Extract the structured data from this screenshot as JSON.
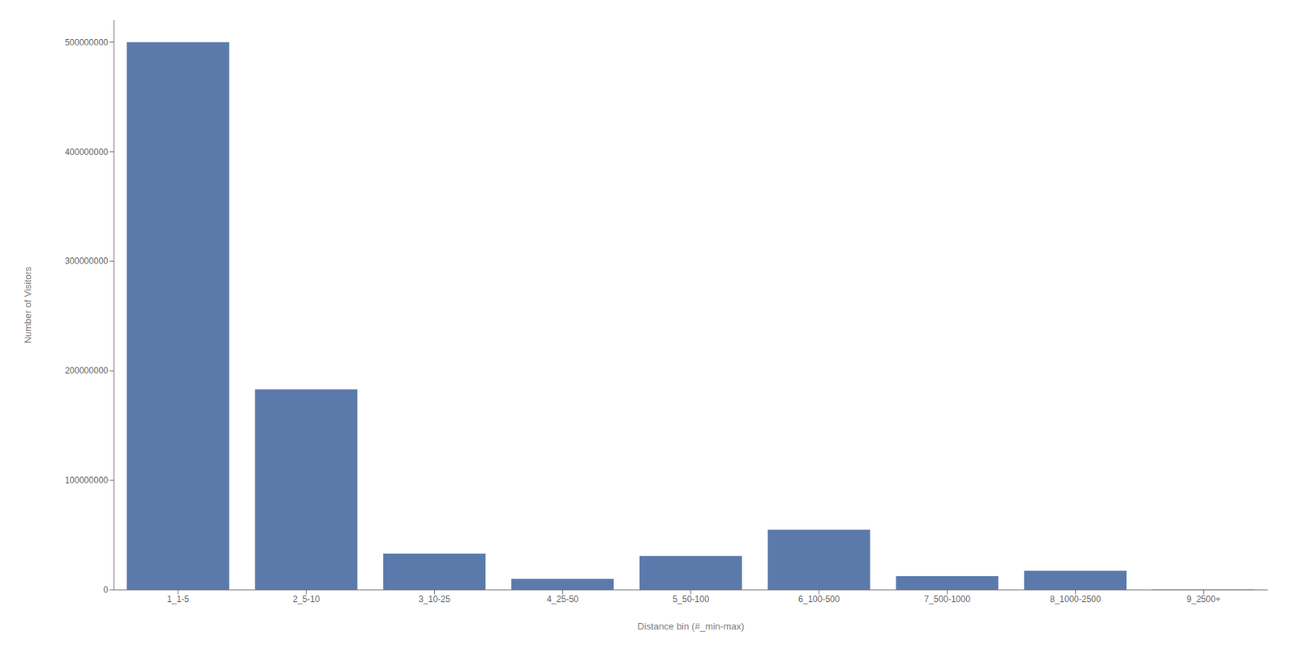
{
  "chart_data": {
    "type": "bar",
    "categories": [
      "1_1-5",
      "2_5-10",
      "3_10-25",
      "4_25-50",
      "5_50-100",
      "6_100-500",
      "7_500-1000",
      "8_1000-2500",
      "9_2500+"
    ],
    "values": [
      500000000,
      183000000,
      33000000,
      10000000,
      31000000,
      55000000,
      12500000,
      17500000,
      300000
    ],
    "color": "#5b7aab",
    "xlabel": "Distance bin (#_min-max)",
    "ylabel": "Number of Visitors",
    "ylim": [
      0,
      520000000
    ],
    "yticks": [
      0,
      100000000,
      200000000,
      300000000,
      400000000,
      500000000
    ],
    "grid": false
  }
}
